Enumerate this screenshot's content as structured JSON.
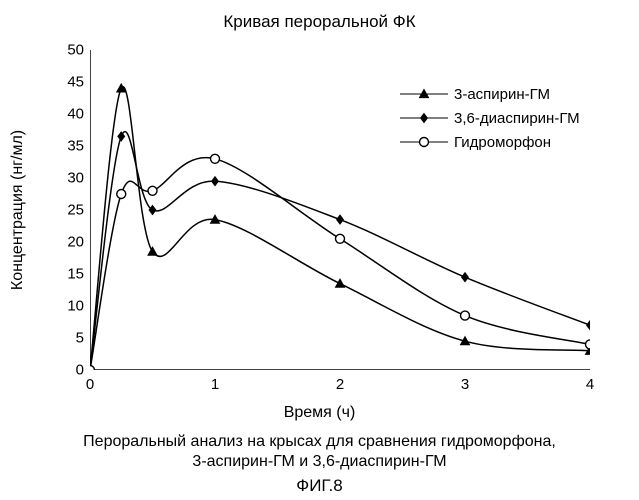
{
  "title": "Кривая пероральной ФК",
  "ylabel": "Концентрация (нг/мл)",
  "xlabel": "Время (ч)",
  "caption_line1": "Пероральный анализ на крысах для сравнения гидроморфона,",
  "caption_line2": "3-аспирин-ГМ и 3,6-диаспирин-ГМ",
  "fig_label": "ФИГ.8",
  "chart": {
    "type": "line",
    "x": [
      0,
      0.25,
      0.5,
      1,
      2,
      3,
      4
    ],
    "xlim": [
      0,
      4
    ],
    "ylim": [
      0,
      50
    ],
    "ytick_step": 5,
    "xtick_step": 1,
    "background_color": "#ffffff",
    "axis_color": "#000000",
    "tick_len": 6,
    "line_width": 1.5,
    "marker_size": 9,
    "series": [
      {
        "label": "3-аспирин-ГМ",
        "marker": "triangle",
        "color": "#000000",
        "fill": "#000000",
        "y": [
          0,
          44,
          18.5,
          23.5,
          13.5,
          4.5,
          3
        ]
      },
      {
        "label": "3,6-диаспирин-ГМ",
        "marker": "diamond",
        "color": "#000000",
        "fill": "#000000",
        "y": [
          0,
          36.5,
          25,
          29.5,
          23.5,
          14.5,
          7
        ]
      },
      {
        "label": "Гидроморфон",
        "marker": "circle",
        "color": "#000000",
        "fill": "#ffffff",
        "y": [
          0,
          27.5,
          28,
          33,
          20.5,
          8.5,
          4
        ]
      }
    ]
  },
  "title_fontsize": 17,
  "label_fontsize": 16,
  "tick_fontsize": 15,
  "legend_fontsize": 15
}
